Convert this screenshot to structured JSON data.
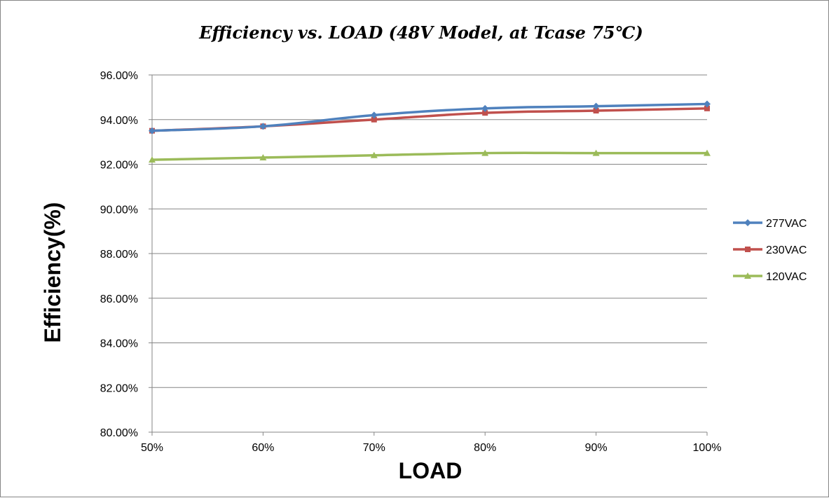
{
  "chart_data": {
    "type": "line",
    "title": "Efficiency vs. LOAD (48V  Model, at Tcase 75℃)",
    "xlabel": "LOAD",
    "ylabel": "Efficiency(%)",
    "categories": [
      "50%",
      "60%",
      "70%",
      "80%",
      "90%",
      "100%"
    ],
    "ylim": [
      80,
      96
    ],
    "yticks": [
      "80.00%",
      "82.00%",
      "84.00%",
      "86.00%",
      "88.00%",
      "90.00%",
      "92.00%",
      "94.00%",
      "96.00%"
    ],
    "grid": true,
    "legend_position": "right",
    "series": [
      {
        "name": "277VAC",
        "color": "#4f81bd",
        "marker": "diamond",
        "values": [
          93.5,
          93.7,
          94.2,
          94.5,
          94.6,
          94.7
        ]
      },
      {
        "name": "230VAC",
        "color": "#c0504d",
        "marker": "square",
        "values": [
          93.5,
          93.7,
          94.0,
          94.3,
          94.4,
          94.5
        ]
      },
      {
        "name": "120VAC",
        "color": "#9bbb59",
        "marker": "triangle",
        "values": [
          92.2,
          92.3,
          92.4,
          92.5,
          92.5,
          92.5
        ]
      }
    ]
  }
}
